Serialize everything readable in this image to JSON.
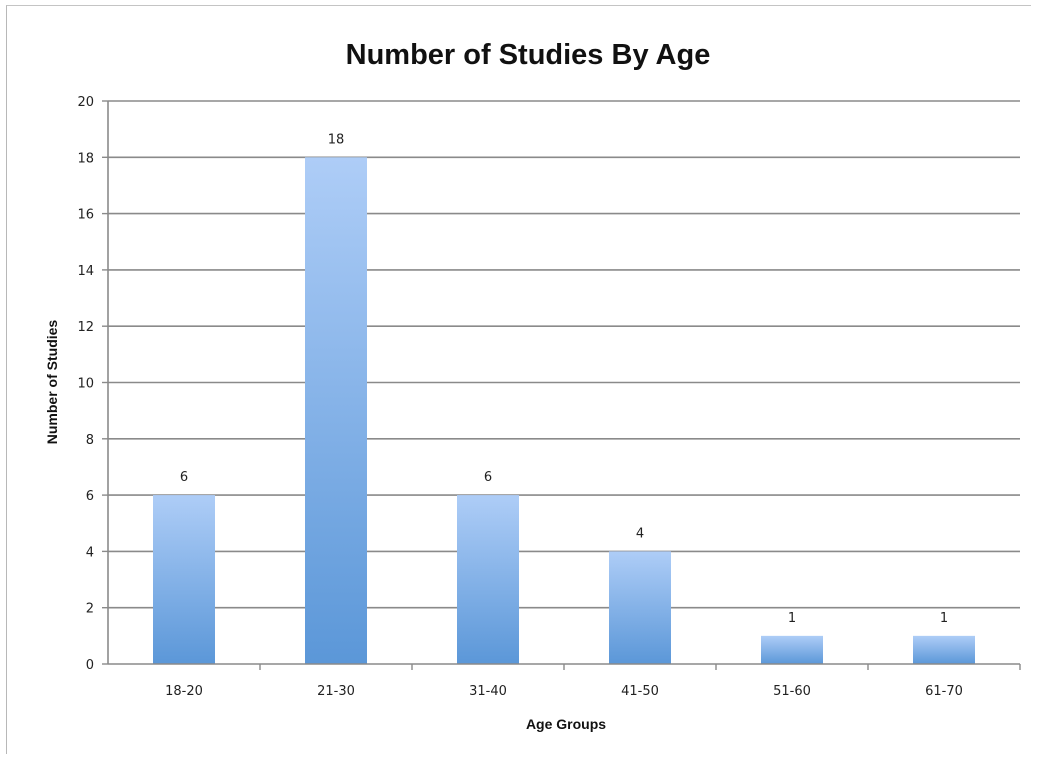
{
  "chart_data": {
    "type": "bar",
    "title": "Number of Studies By Age",
    "xlabel": "Age Groups",
    "ylabel": "Number of Studies",
    "categories": [
      "18-20",
      "21-30",
      "31-40",
      "41-50",
      "51-60",
      "61-70"
    ],
    "values": [
      6,
      18,
      6,
      4,
      1,
      1
    ],
    "data_labels": [
      "6",
      "18",
      "6",
      "4",
      "1",
      "1"
    ],
    "ylim": [
      0,
      20
    ],
    "yticks": [
      0,
      2,
      4,
      6,
      8,
      10,
      12,
      14,
      16,
      18,
      20
    ],
    "grid": true,
    "legend": "none",
    "colors": {
      "bar_top": "#aecdf7",
      "bar_bottom": "#5b97d8",
      "grid": "#8a8a8a",
      "axis": "#8a8a8a"
    }
  }
}
